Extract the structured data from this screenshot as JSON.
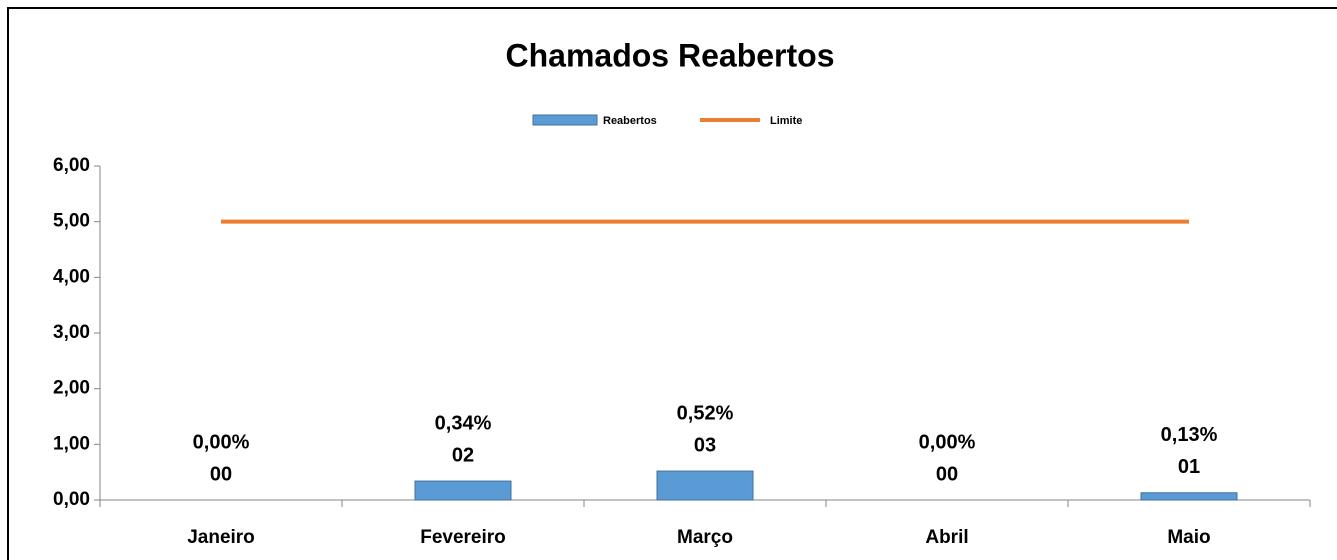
{
  "chart_data": {
    "type": "bar",
    "title": "Chamados Reabertos",
    "categories": [
      "Janeiro",
      "Fevereiro",
      "Março",
      "Abril",
      "Maio"
    ],
    "series": [
      {
        "name": "Reabertos",
        "type": "bar",
        "color": "#5b9bd5",
        "values": [
          0,
          0.34,
          0.52,
          0,
          0.13
        ],
        "value_labels": [
          "0,00%",
          "0,34%",
          "0,52%",
          "0,00%",
          "0,13%"
        ],
        "counts": [
          "00",
          "02",
          "03",
          "00",
          "01"
        ]
      },
      {
        "name": "Limite",
        "type": "line",
        "color": "#ed7d31",
        "values": [
          5,
          5,
          5,
          5,
          5
        ]
      }
    ],
    "ylim": [
      0,
      6
    ],
    "yticks": [
      {
        "value": 0,
        "label": "0,00"
      },
      {
        "value": 1,
        "label": "1,00"
      },
      {
        "value": 2,
        "label": "2,00"
      },
      {
        "value": 3,
        "label": "3,00"
      },
      {
        "value": 4,
        "label": "4,00"
      },
      {
        "value": 5,
        "label": "5,00"
      },
      {
        "value": 6,
        "label": "6,00"
      }
    ],
    "grid": false,
    "legend": "top"
  }
}
